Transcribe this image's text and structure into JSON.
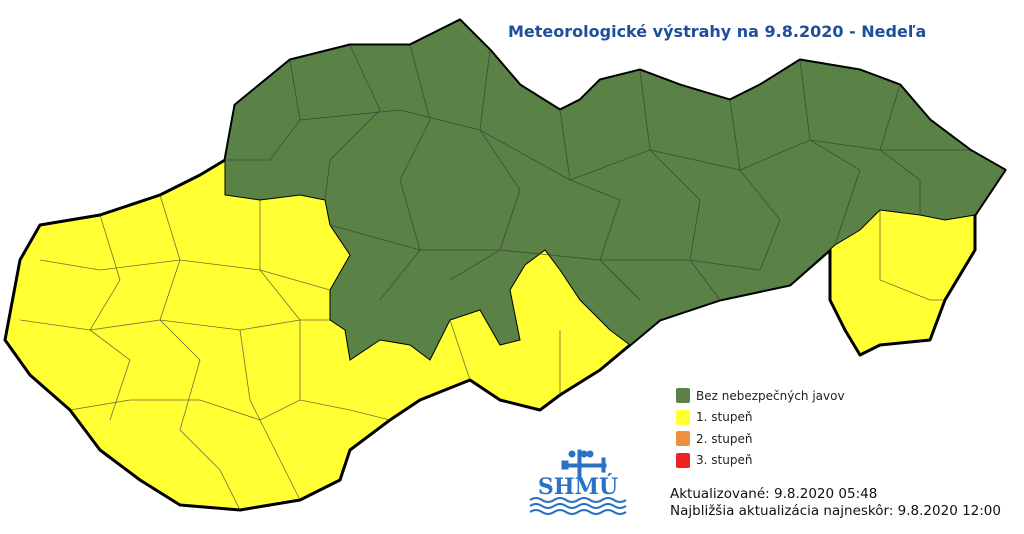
{
  "title": "Meteorologické výstrahy na 9.8.2020 - Nedeľa",
  "legend": [
    {
      "label": "Bez nebezpečných javov",
      "color": "#5a8246"
    },
    {
      "label": "1. stupeň",
      "color": "#ffff33"
    },
    {
      "label": "2. stupeň",
      "color": "#f0903a"
    },
    {
      "label": "3. stupeň",
      "color": "#ee2222"
    }
  ],
  "map": {
    "regions": [
      {
        "area": "north, central and east",
        "level": "Bez nebezpečných javov",
        "color": "#5a8246"
      },
      {
        "area": "west and south",
        "level": "1. stupeň",
        "color": "#ffff33"
      },
      {
        "area": "southeast",
        "level": "1. stupeň",
        "color": "#ffff33"
      }
    ]
  },
  "logo": {
    "text": "SHMÚ"
  },
  "updated": "Aktualizované: 9.8.2020 05:48",
  "next_update": "Najbližšia aktualizácia najneskôr: 9.8.2020 12:00"
}
